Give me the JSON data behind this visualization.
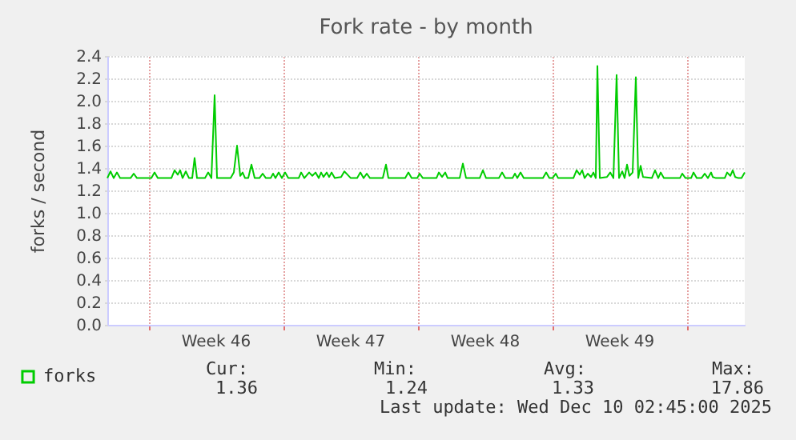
{
  "chart_data": {
    "type": "line",
    "title": "Fork rate - by month",
    "ylabel": "forks / second",
    "x": [
      "2025-11-07T21:00",
      "2025-11-08T01:00",
      "2025-11-08T05:00",
      "2025-11-08T09:00",
      "2025-11-08T13:00",
      "2025-11-09T02:00",
      "2025-11-09T06:00",
      "2025-11-09T10:00",
      "2025-11-10T04:00",
      "2025-11-10T08:00",
      "2025-11-10T12:00",
      "2025-11-11T05:00",
      "2025-11-11T09:00",
      "2025-11-11T13:00",
      "2025-11-11T16:00",
      "2025-11-11T19:00",
      "2025-11-11T23:00",
      "2025-11-12T03:00",
      "2025-11-12T07:00",
      "2025-11-12T10:00",
      "2025-11-12T13:00",
      "2025-11-12T23:00",
      "2025-11-13T03:00",
      "2025-11-13T07:00",
      "2025-11-13T11:00",
      "2025-11-13T14:00",
      "2025-11-14T07:00",
      "2025-11-14T11:00",
      "2025-11-14T15:00",
      "2025-11-14T19:00",
      "2025-11-14T22:00",
      "2025-11-15T01:00",
      "2025-11-15T05:00",
      "2025-11-15T09:00",
      "2025-11-15T13:00",
      "2025-11-15T19:00",
      "2025-11-15T23:00",
      "2025-11-16T03:00",
      "2025-11-16T09:00",
      "2025-11-16T12:00",
      "2025-11-16T15:00",
      "2025-11-16T19:00",
      "2025-11-16T23:00",
      "2025-11-17T03:00",
      "2025-11-17T07:00",
      "2025-11-17T20:00",
      "2025-11-17T23:00",
      "2025-11-18T03:00",
      "2025-11-18T09:00",
      "2025-11-18T13:00",
      "2025-11-18T17:00",
      "2025-11-18T21:00",
      "2025-11-19T00:00",
      "2025-11-19T03:00",
      "2025-11-19T07:00",
      "2025-11-19T10:00",
      "2025-11-19T13:00",
      "2025-11-19T17:00",
      "2025-11-20T01:00",
      "2025-11-20T05:00",
      "2025-11-20T09:00",
      "2025-11-20T13:00",
      "2025-11-20T21:00",
      "2025-11-21T01:00",
      "2025-11-21T05:00",
      "2025-11-21T09:00",
      "2025-11-21T13:00",
      "2025-11-22T05:00",
      "2025-11-22T09:00",
      "2025-11-22T12:00",
      "2025-11-23T09:00",
      "2025-11-23T13:00",
      "2025-11-23T17:00",
      "2025-11-24T00:00",
      "2025-11-24T03:00",
      "2025-11-24T07:00",
      "2025-11-25T00:00",
      "2025-11-25T03:00",
      "2025-11-25T07:00",
      "2025-11-25T11:00",
      "2025-11-25T14:00",
      "2025-11-26T05:00",
      "2025-11-26T09:00",
      "2025-11-26T13:00",
      "2025-11-27T06:00",
      "2025-11-27T10:00",
      "2025-11-27T14:00",
      "2025-11-28T06:00",
      "2025-11-28T10:00",
      "2025-11-28T14:00",
      "2025-11-28T23:00",
      "2025-11-29T02:00",
      "2025-11-29T05:00",
      "2025-11-29T09:00",
      "2025-11-29T13:00",
      "2025-11-30T13:00",
      "2025-11-30T17:00",
      "2025-11-30T21:00",
      "2025-12-01T01:00",
      "2025-12-01T05:00",
      "2025-12-01T08:00",
      "2025-12-02T03:00",
      "2025-12-02T07:00",
      "2025-12-02T11:00",
      "2025-12-02T14:00",
      "2025-12-02T17:00",
      "2025-12-02T21:00",
      "2025-12-03T01:00",
      "2025-12-03T04:00",
      "2025-12-03T07:00",
      "2025-12-03T09:00",
      "2025-12-03T12:00",
      "2025-12-03T21:00",
      "2025-12-04T01:00",
      "2025-12-04T05:00",
      "2025-12-04T09:00",
      "2025-12-04T12:00",
      "2025-12-04T16:00",
      "2025-12-04T19:00",
      "2025-12-04T22:00",
      "2025-12-05T01:00",
      "2025-12-05T05:00",
      "2025-12-05T09:00",
      "2025-12-05T12:00",
      "2025-12-05T15:00",
      "2025-12-05T18:00",
      "2025-12-06T05:00",
      "2025-12-06T09:00",
      "2025-12-06T13:00",
      "2025-12-06T16:00",
      "2025-12-06T20:00",
      "2025-12-07T16:00",
      "2025-12-07T19:00",
      "2025-12-07T23:00",
      "2025-12-08T06:00",
      "2025-12-08T09:00",
      "2025-12-08T13:00",
      "2025-12-08T19:00",
      "2025-12-08T23:00",
      "2025-12-09T03:00",
      "2025-12-09T07:00",
      "2025-12-09T09:00",
      "2025-12-09T13:00",
      "2025-12-10T00:00",
      "2025-12-10T03:00",
      "2025-12-10T07:00",
      "2025-12-10T10:00",
      "2025-12-10T13:00",
      "2025-12-10T17:00",
      "2025-12-10T21:00",
      "2025-12-11T01:00"
    ],
    "series": [
      {
        "name": "forks",
        "color": "#00cc00",
        "values": [
          1.31,
          1.37,
          1.31,
          1.36,
          1.31,
          1.31,
          1.35,
          1.31,
          1.31,
          1.36,
          1.31,
          1.31,
          1.38,
          1.34,
          1.38,
          1.31,
          1.37,
          1.31,
          1.31,
          1.49,
          1.31,
          1.31,
          1.36,
          1.31,
          2.05,
          1.31,
          1.31,
          1.36,
          1.6,
          1.33,
          1.36,
          1.31,
          1.31,
          1.43,
          1.31,
          1.31,
          1.35,
          1.31,
          1.31,
          1.35,
          1.31,
          1.36,
          1.31,
          1.36,
          1.31,
          1.31,
          1.36,
          1.31,
          1.36,
          1.33,
          1.36,
          1.31,
          1.36,
          1.32,
          1.36,
          1.32,
          1.36,
          1.31,
          1.32,
          1.37,
          1.34,
          1.31,
          1.31,
          1.36,
          1.31,
          1.35,
          1.31,
          1.31,
          1.43,
          1.31,
          1.31,
          1.36,
          1.31,
          1.31,
          1.35,
          1.31,
          1.31,
          1.36,
          1.32,
          1.36,
          1.31,
          1.31,
          1.44,
          1.31,
          1.31,
          1.38,
          1.31,
          1.31,
          1.36,
          1.31,
          1.31,
          1.35,
          1.31,
          1.36,
          1.31,
          1.31,
          1.36,
          1.31,
          1.31,
          1.35,
          1.31,
          1.31,
          1.38,
          1.34,
          1.38,
          1.31,
          1.35,
          1.32,
          1.36,
          1.31,
          2.31,
          1.31,
          1.32,
          1.36,
          1.31,
          2.23,
          1.31,
          1.37,
          1.31,
          1.43,
          1.33,
          1.36,
          2.21,
          1.31,
          1.42,
          1.32,
          1.31,
          1.38,
          1.31,
          1.36,
          1.31,
          1.31,
          1.35,
          1.31,
          1.31,
          1.36,
          1.31,
          1.31,
          1.35,
          1.31,
          1.36,
          1.32,
          1.31,
          1.31,
          1.36,
          1.33,
          1.38,
          1.32,
          1.31,
          1.31,
          1.36
        ]
      }
    ],
    "xlim": [
      "2025-11-07T21:00",
      "2025-12-11T01:00"
    ],
    "xticks": [
      {
        "value": "2025-11-10",
        "label": null
      },
      {
        "value": "2025-11-13T12:00",
        "label": "Week 46"
      },
      {
        "value": "2025-11-17",
        "label": null
      },
      {
        "value": "2025-11-20T12:00",
        "label": "Week 47"
      },
      {
        "value": "2025-11-24",
        "label": null
      },
      {
        "value": "2025-11-27T12:00",
        "label": "Week 48"
      },
      {
        "value": "2025-12-01",
        "label": null
      },
      {
        "value": "2025-12-04T12:00",
        "label": "Week 49"
      },
      {
        "value": "2025-12-08",
        "label": null
      }
    ],
    "ylim": [
      0,
      2.4
    ],
    "yticks": [
      {
        "value": 0,
        "label": "0.0"
      },
      {
        "value": 0.2,
        "label": "0.2"
      },
      {
        "value": 0.4,
        "label": "0.4"
      },
      {
        "value": 0.6,
        "label": "0.6"
      },
      {
        "value": 0.8,
        "label": "0.8"
      },
      {
        "value": 1,
        "label": "1.0"
      },
      {
        "value": 1.2,
        "label": "1.2"
      },
      {
        "value": 1.4,
        "label": "1.4"
      },
      {
        "value": 1.6,
        "label": "1.6"
      },
      {
        "value": 1.8,
        "label": "1.8"
      },
      {
        "value": 2,
        "label": "2.0"
      },
      {
        "value": 2.2,
        "label": "2.2"
      },
      {
        "value": 2.4,
        "label": "2.4"
      }
    ],
    "grid": true,
    "legend": "bottom left",
    "annotations": [
      "Cur:",
      "1.36",
      "Min:",
      "1.24",
      "Avg:",
      "1.33",
      "Max:",
      "17.86",
      "Last update: Wed Dec 10 02:45:00 2025"
    ]
  }
}
